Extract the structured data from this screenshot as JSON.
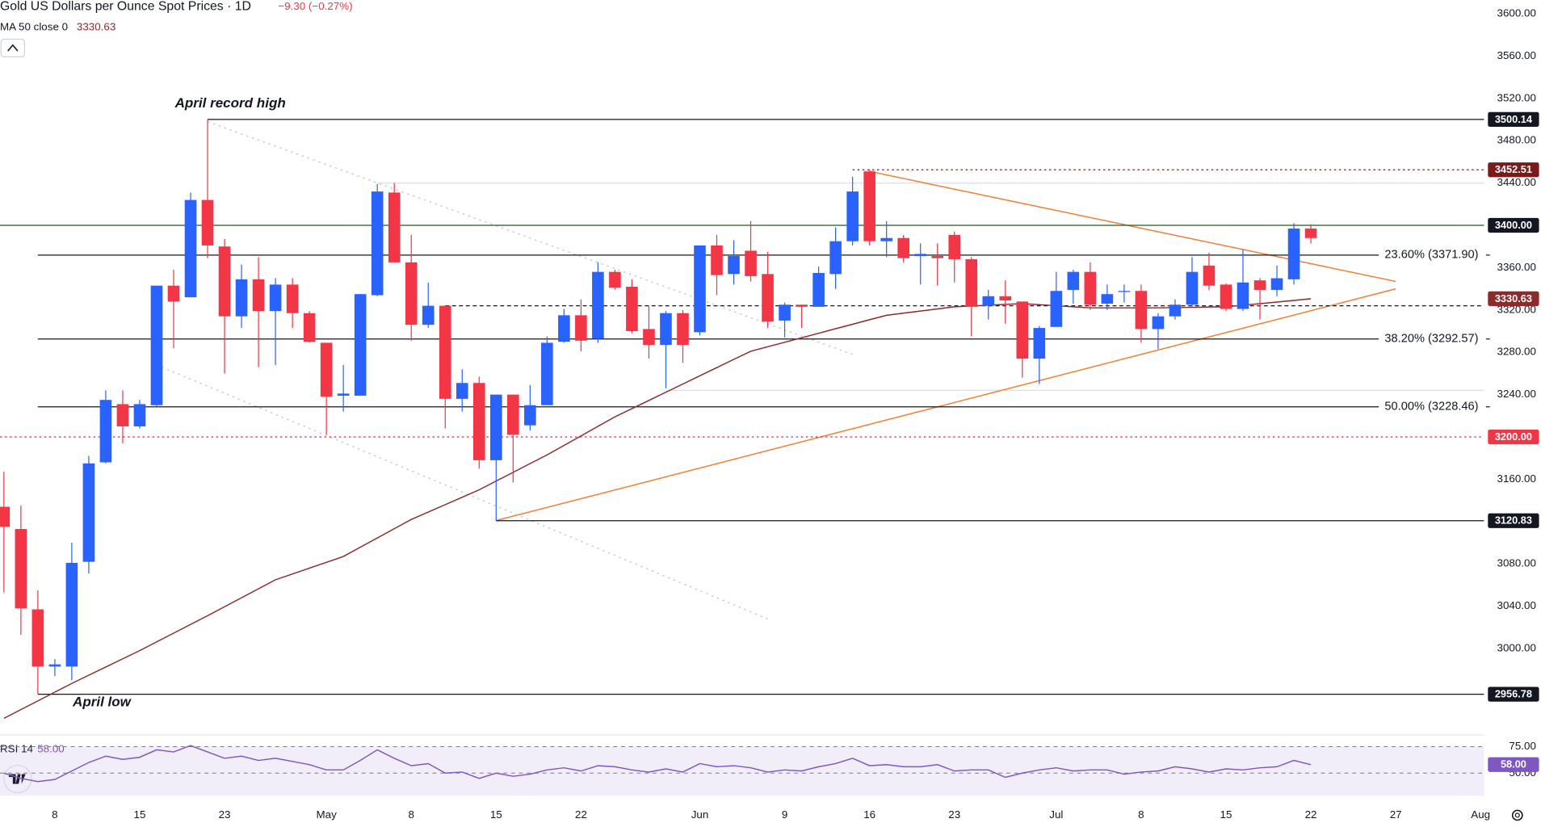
{
  "chart_data": {
    "type": "candlestick",
    "title": "Gold US Dollars per Ounce Spot Prices · 1D",
    "change": "−9.30 (−0.27%)",
    "ma_name": "MA 50 close 0",
    "ma_value_label": "3330.63",
    "annotations": [
      "April record high",
      "April low"
    ],
    "up_color": "#2962ff",
    "down_color": "#f23645",
    "xlim": [
      -0.23,
      87.2
    ],
    "xticks": [
      {
        "value": 3,
        "label": "8"
      },
      {
        "value": 8,
        "label": "15"
      },
      {
        "value": 13,
        "label": "23"
      },
      {
        "value": 19,
        "label": "May"
      },
      {
        "value": 24,
        "label": "8"
      },
      {
        "value": 29,
        "label": "15"
      },
      {
        "value": 34,
        "label": "22"
      },
      {
        "value": 41,
        "label": "Jun"
      },
      {
        "value": 46,
        "label": "9"
      },
      {
        "value": 51,
        "label": "16"
      },
      {
        "value": 56,
        "label": "23"
      },
      {
        "value": 62,
        "label": "Jul"
      },
      {
        "value": 67,
        "label": "8"
      },
      {
        "value": 72,
        "label": "15"
      },
      {
        "value": 77,
        "label": "22"
      },
      {
        "value": 82,
        "label": "27"
      },
      {
        "value": 87,
        "label": "Aug"
      }
    ],
    "ylim": [
      2923,
      3613
    ],
    "yticks": [
      {
        "value": 3600,
        "label": "3600.00"
      },
      {
        "value": 3560,
        "label": "3560.00"
      },
      {
        "value": 3520,
        "label": "3520.00"
      },
      {
        "value": 3480,
        "label": "3480.00"
      },
      {
        "value": 3440,
        "label": "3440.00"
      },
      {
        "value": 3360,
        "label": "3360.00"
      },
      {
        "value": 3320,
        "label": "3320.00"
      },
      {
        "value": 3280,
        "label": "3280.00"
      },
      {
        "value": 3240,
        "label": "3240.00"
      },
      {
        "value": 3160,
        "label": "3160.00"
      },
      {
        "value": 3080,
        "label": "3080.00"
      },
      {
        "value": 3040,
        "label": "3040.00"
      },
      {
        "value": 3000,
        "label": "3000.00"
      }
    ],
    "open": [
      3134,
      3113,
      3037,
      2983,
      2983,
      3082,
      3176,
      3231,
      3210,
      3230,
      3343,
      3332,
      3424,
      3380,
      3314,
      3349,
      3319,
      3344,
      3317,
      3289,
      3239,
      3239,
      3334,
      3431,
      3365,
      3306,
      3324,
      3236,
      3251,
      3178,
      3240,
      3211,
      3230,
      3290,
      3315,
      3293,
      3356,
      3342,
      3302,
      3287,
      3317,
      3299,
      3381,
      3354,
      3376,
      3354,
      3310,
      3325,
      3323,
      3354,
      3385,
      3451,
      3385,
      3388,
      3371,
      3371,
      3391,
      3368,
      3324,
      3333,
      3328,
      3274,
      3304,
      3339,
      3356,
      3326,
      3337,
      3338,
      3302,
      3314,
      3325,
      3362,
      3344,
      3321,
      3348,
      3339,
      3349,
      3397
    ],
    "high": [
      3167,
      3135,
      3055,
      2990,
      3100,
      3182,
      3244,
      3244,
      3235,
      3343,
      3358,
      3431,
      3500.14,
      3387,
      3363,
      3370,
      3350,
      3350,
      3319,
      3289,
      3268,
      3335,
      3439,
      3440,
      3391,
      3346,
      3324,
      3264,
      3257,
      3240,
      3240,
      3249,
      3295,
      3321,
      3330,
      3365,
      3358,
      3349,
      3324,
      3319,
      3320,
      3381,
      3391,
      3386,
      3404,
      3375,
      3327,
      3325,
      3361,
      3398,
      3446,
      3452.51,
      3404,
      3391,
      3383,
      3383,
      3394,
      3370,
      3339,
      3348,
      3328,
      3305,
      3356,
      3358,
      3365,
      3344,
      3344,
      3344,
      3317,
      3330,
      3370,
      3374,
      3345,
      3377,
      3350,
      3362,
      3402,
      3401
    ],
    "low": [
      3053,
      3013,
      2956.78,
      2974,
      2970,
      3071,
      3175,
      3194,
      3208,
      3229,
      3284,
      3332,
      3369,
      3260,
      3303,
      3266,
      3268,
      3303,
      3289,
      3202,
      3224,
      3239,
      3333,
      3365,
      3291,
      3303,
      3208,
      3224,
      3170,
      3120.83,
      3157,
      3206,
      3230,
      3289,
      3281,
      3289,
      3339,
      3298,
      3274,
      3246,
      3270,
      3296,
      3334,
      3344,
      3347,
      3303,
      3294,
      3303,
      3323,
      3340,
      3381,
      3381,
      3370,
      3365,
      3344,
      3343,
      3346,
      3295,
      3311,
      3307,
      3256,
      3250,
      3304,
      3326,
      3320,
      3320,
      3327,
      3289,
      3283,
      3311,
      3323,
      3339,
      3319,
      3319,
      3311,
      3333,
      3344,
      3383
    ],
    "close": [
      3115,
      3038,
      2983,
      2985,
      3081,
      3175,
      3235,
      3210,
      3231,
      3343,
      3328,
      3424,
      3381,
      3314,
      3349,
      3319,
      3344,
      3317,
      3290,
      3238,
      3241,
      3335,
      3432,
      3365,
      3306,
      3324,
      3236,
      3251,
      3178,
      3240,
      3202,
      3230,
      3289,
      3315,
      3291,
      3356,
      3341,
      3300,
      3287,
      3317,
      3287,
      3381,
      3353,
      3371,
      3352,
      3309,
      3325,
      3323,
      3355,
      3385,
      3432,
      3385,
      3388,
      3369,
      3373,
      3369,
      3368,
      3323,
      3333,
      3329,
      3274,
      3303,
      3338,
      3356,
      3325,
      3335,
      3338,
      3302,
      3314,
      3325,
      3356,
      3343,
      3321,
      3346,
      3339,
      3350,
      3397,
      3388
    ],
    "ma": {
      "color": "#8d2a2a",
      "values": [
        2934,
        2942.3,
        2950.5,
        2958.8,
        2967,
        2974.8,
        2982.5,
        2990.3,
        2998,
        3006.3,
        3014.5,
        3022.8,
        3031,
        3039.5,
        3048,
        3056.5,
        3065,
        3070.5,
        3076,
        3081.5,
        3087,
        3095.8,
        3104.5,
        3113.3,
        3122,
        3129,
        3136,
        3143,
        3150,
        3158.3,
        3166.5,
        3174.8,
        3183,
        3192,
        3201,
        3210,
        3219,
        3226.8,
        3234.5,
        3242.3,
        3250,
        3257.8,
        3265.5,
        3273.3,
        3281,
        3285.3,
        3289.5,
        3293.8,
        3298,
        3302.3,
        3306.5,
        3310.8,
        3315,
        3317,
        3319,
        3321,
        3323,
        3323.8,
        3324.5,
        3325.3,
        3326,
        3325,
        3324,
        3323,
        3322,
        3322,
        3322,
        3322,
        3322,
        3322.3,
        3322.5,
        3322.8,
        3323,
        3324.5,
        3326,
        3327.5,
        3329,
        3330.63
      ]
    },
    "price_lines": [
      {
        "value": 3500.14,
        "label": "3500.14",
        "from": 12,
        "color": "#131722",
        "box": "#131722"
      },
      {
        "value": 3452.51,
        "label": "3452.51",
        "from": 50,
        "color": "#7a1b1b",
        "box": "#7a1b1b",
        "dash": "2 3"
      },
      {
        "value": 3400,
        "label": "3400.00",
        "color": "#1b5e20",
        "box": "#131722"
      },
      {
        "value": 3371.9,
        "label": "23.60% (3371.90)",
        "from": 2,
        "to": 81,
        "color": "#131722"
      },
      {
        "value": 3330.63,
        "label": "3330.63",
        "from": 87.2,
        "color": "#8d2a2a",
        "box": "#8d2a2a"
      },
      {
        "value": 3324,
        "from": 26,
        "color": "#131722",
        "dash": "4 3"
      },
      {
        "value": 3292.57,
        "label": "38.20% (3292.57)",
        "from": 2,
        "to": 81,
        "color": "#131722"
      },
      {
        "value": 3228.46,
        "label": "50.00% (3228.46)",
        "from": 2,
        "to": 81,
        "color": "#131722"
      },
      {
        "value": 3200,
        "label": "3200.00",
        "color": "#e0263a",
        "box": "#f23645",
        "dash": "2 3"
      },
      {
        "value": 3120.83,
        "label": "3120.83",
        "from": 29,
        "color": "#131722",
        "box": "#131722"
      },
      {
        "value": 2956.78,
        "label": "2956.78",
        "from": 2,
        "color": "#131722",
        "box": "#131722"
      }
    ],
    "drawings": [
      {
        "points": [
          [
            22,
            3440
          ],
          [
            87.2,
            3440
          ]
        ],
        "color": "#e0e3eb"
      },
      {
        "points": [
          [
            39,
            3244
          ],
          [
            87.2,
            3244
          ]
        ],
        "color": "#e0e3eb"
      },
      {
        "points": [
          [
            51,
            3451
          ],
          [
            82,
            3347
          ]
        ],
        "color": "#f57c30"
      },
      {
        "points": [
          [
            29,
            3121
          ],
          [
            82,
            3340
          ]
        ],
        "color": "#f57c30"
      },
      {
        "points": [
          [
            12,
            3498
          ],
          [
            50,
            3278
          ]
        ],
        "color": "#c8cad2",
        "dash": "2 4"
      },
      {
        "points": [
          [
            9.3,
            3266
          ],
          [
            45,
            3028
          ]
        ],
        "color": "#c8cad2",
        "dash": "2 4"
      }
    ],
    "rsi": {
      "name": "RSI 14",
      "color": "#7e57c2",
      "ylim": [
        28.7,
        86.1
      ],
      "yticks": [
        {
          "value": 75,
          "label": "75.00"
        },
        {
          "value": 50,
          "label": "50.00"
        }
      ],
      "values": [
        50,
        45,
        42,
        44,
        52,
        60,
        66,
        63,
        65,
        72,
        70,
        76,
        70,
        64,
        66,
        62,
        64,
        61,
        58,
        53,
        53,
        62,
        72,
        64,
        57,
        59,
        50,
        51,
        45,
        50,
        47,
        49,
        53,
        55,
        52,
        57,
        56,
        53,
        51,
        54,
        51,
        59,
        56,
        57,
        55,
        51,
        53,
        52,
        56,
        59,
        64,
        57,
        58,
        56,
        56,
        58,
        52,
        53,
        53,
        46,
        50,
        53,
        55,
        52,
        53,
        53,
        49,
        51,
        52,
        56,
        54,
        51,
        54,
        53,
        55,
        56,
        62,
        58
      ],
      "value_label": "58.00"
    }
  }
}
